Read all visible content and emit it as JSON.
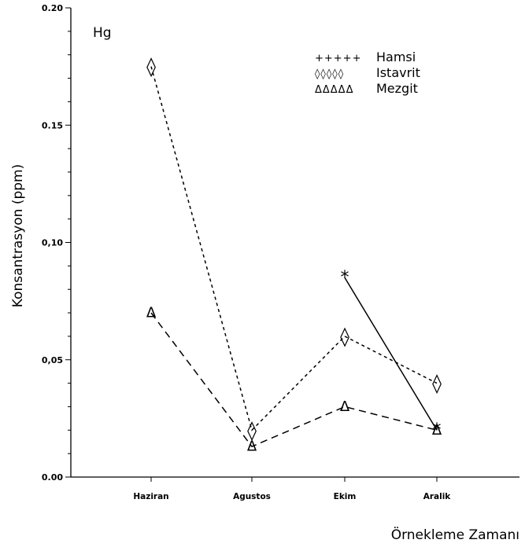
{
  "chart_data": {
    "type": "line",
    "annotation": "Hg",
    "ylabel": "Konsantrasyon (ppm)",
    "xlabel": "Örnekleme Zamanı",
    "categories": [
      "Haziran",
      "Agustos",
      "Ekim",
      "Aralik"
    ],
    "ylim": [
      0,
      0.2
    ],
    "y_ticks": [
      0.0,
      0.05,
      0.1,
      0.15,
      0.2
    ],
    "y_tick_labels": [
      "0.00",
      "0,05",
      "0,10",
      "0.15",
      "0.20"
    ],
    "grid": false,
    "legend_position": "top-right",
    "series": [
      {
        "name": "Hamsi",
        "legend_symbol": "+++++",
        "marker": "*",
        "line_style": "solid",
        "color": "#000000",
        "values": [
          null,
          null,
          0.085,
          0.02
        ]
      },
      {
        "name": "Istavrit",
        "legend_symbol": "◊◊◊◊◊",
        "marker": "◊",
        "line_style": "dotted",
        "color": "#000000",
        "values": [
          0.175,
          0.02,
          0.06,
          0.04
        ]
      },
      {
        "name": "Mezgit",
        "legend_symbol": "ΔΔΔΔΔ",
        "marker": "Δ",
        "line_style": "dashed",
        "color": "#000000",
        "values": [
          0.07,
          0.013,
          0.03,
          0.02
        ]
      }
    ]
  }
}
